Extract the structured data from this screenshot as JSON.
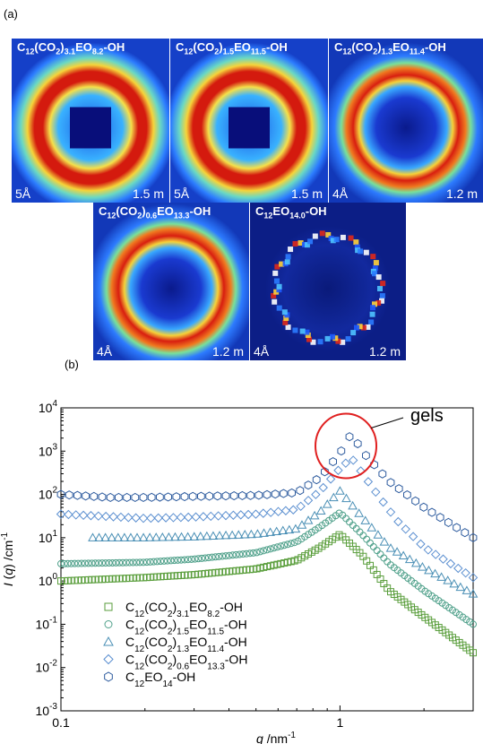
{
  "figure": {
    "panel_a_label": "(a)",
    "panel_b_label": "(b)"
  },
  "saxs_images": [
    {
      "title": "C12(CO2)3.1EO8.2-OH",
      "wavelength": "5Å",
      "distance": "1.5 m",
      "beamstop": "square"
    },
    {
      "title": "C12(CO2)1.5EO11.5-OH",
      "wavelength": "5Å",
      "distance": "1.5 m",
      "beamstop": "square"
    },
    {
      "title": "C12(CO2)1.3EO11.4-OH",
      "wavelength": "4Å",
      "distance": "1.2 m",
      "beamstop": "round"
    },
    {
      "title": "C12(CO2)0.6EO13.3-OH",
      "wavelength": "4Å",
      "distance": "1.2 m",
      "beamstop": "round"
    },
    {
      "title": "C12EO14.0-OH",
      "wavelength": "4Å",
      "distance": "1.2 m",
      "beamstop": "speckle"
    }
  ],
  "chart_data": {
    "type": "scatter",
    "xscale": "log",
    "yscale": "log",
    "xlim": [
      0.1,
      3
    ],
    "ylim": [
      0.001,
      10000
    ],
    "xlabel": "q /nm-1",
    "ylabel": "I (q) /cm-1",
    "x_ticks": [
      "0.1",
      "1"
    ],
    "y_ticks": [
      "10-3",
      "10-2",
      "10-1",
      "100",
      "101",
      "102",
      "103",
      "104"
    ],
    "annotation": "gels",
    "legend_position": "bottom-left",
    "series": [
      {
        "name": "C12(CO2)3.1EO8.2-OH",
        "marker": "square",
        "color": "#5a9e3c",
        "x": [
          0.1,
          0.2,
          0.3,
          0.5,
          0.7,
          0.85,
          1.0,
          1.2,
          1.5,
          2.0,
          3.0
        ],
        "y": [
          1.0,
          1.2,
          1.4,
          1.9,
          3.0,
          6.0,
          12,
          4.0,
          0.6,
          0.15,
          0.022
        ]
      },
      {
        "name": "C12(CO2)1.5EO11.5-OH",
        "marker": "circle",
        "color": "#4fa08a",
        "x": [
          0.1,
          0.2,
          0.3,
          0.5,
          0.7,
          0.85,
          1.0,
          1.2,
          1.5,
          2.0,
          3.0
        ],
        "y": [
          2.5,
          2.7,
          3.2,
          4.5,
          8.0,
          18,
          38,
          12,
          2.5,
          0.6,
          0.1
        ]
      },
      {
        "name": "C12(CO2)1.3EO11.4-OH",
        "marker": "triangle",
        "color": "#4a8fb5",
        "x": [
          0.13,
          0.2,
          0.3,
          0.5,
          0.7,
          0.85,
          1.0,
          1.2,
          1.5,
          2.0,
          3.0
        ],
        "y": [
          10,
          10,
          10.5,
          12,
          16,
          40,
          120,
          30,
          6,
          2.0,
          0.5
        ]
      },
      {
        "name": "C12(CO2)0.6EO13.3-OH",
        "marker": "diamond",
        "color": "#5b8fd0",
        "x": [
          0.1,
          0.2,
          0.3,
          0.5,
          0.7,
          0.85,
          1.0,
          1.1,
          1.3,
          1.6,
          2.0,
          3.0
        ],
        "y": [
          35,
          28,
          30,
          35,
          45,
          120,
          400,
          700,
          150,
          25,
          6,
          1.2
        ]
      },
      {
        "name": "C12EO14-OH",
        "marker": "hexagon",
        "color": "#2d5b9e",
        "x": [
          0.1,
          0.15,
          0.2,
          0.3,
          0.5,
          0.7,
          0.85,
          1.0,
          1.1,
          1.2,
          1.5,
          2.0,
          3.0
        ],
        "y": [
          100,
          85,
          85,
          90,
          95,
          110,
          250,
          900,
          2600,
          1000,
          200,
          50,
          10
        ]
      }
    ]
  }
}
